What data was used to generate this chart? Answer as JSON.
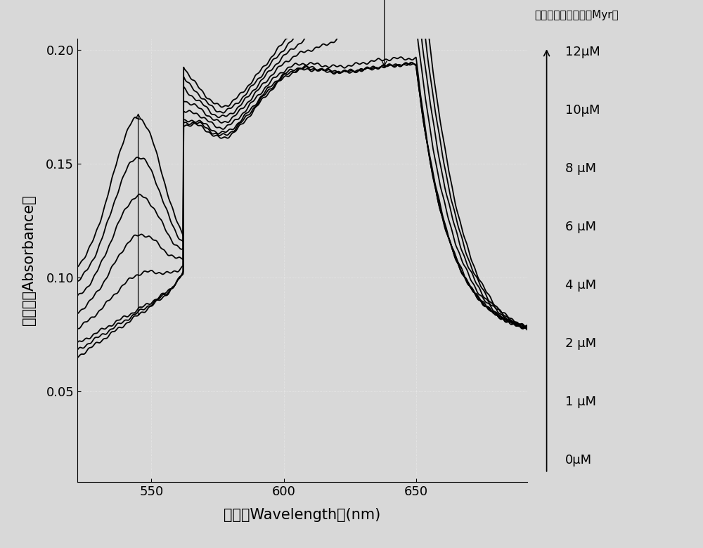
{
  "xlabel": "波长（Wavelength）(nm)",
  "ylabel": "吸光度（Absorbance）",
  "legend_title": "氯化肉豆蕊酰胆碱（Myr）",
  "legend_labels": [
    "12μM",
    "10μM",
    "8 μM",
    "6 μM",
    "4 μM",
    "2 μM",
    "1 μM",
    "0μM"
  ],
  "xlim": [
    522,
    692
  ],
  "ylim": [
    0.01,
    0.205
  ],
  "yticks": [
    0.05,
    0.1,
    0.15,
    0.2
  ],
  "xticks": [
    550,
    600,
    650
  ],
  "background_color": "#d8d8d8",
  "plot_bg_color": "#d8d8d8",
  "line_color": "#000000",
  "peak1_wavelength": 545,
  "peak2_wavelength": 638,
  "figsize": [
    10.0,
    7.8
  ],
  "dpi": 100,
  "conc_values": [
    0,
    1,
    2,
    4,
    6,
    8,
    10,
    12
  ]
}
